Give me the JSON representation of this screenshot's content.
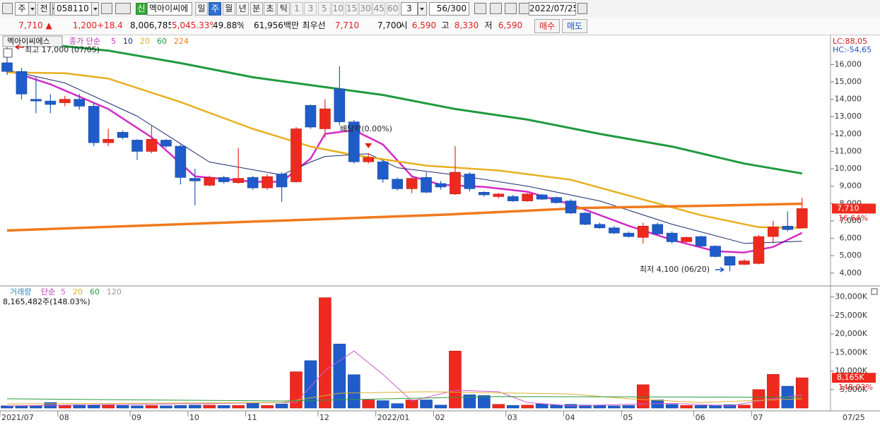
{
  "toolbar": {
    "period_type": "주",
    "adjust": "전",
    "code": "058110",
    "new_badge": "신",
    "name": "멕아이씨에",
    "periods": [
      "일",
      "주",
      "월",
      "년",
      "분",
      "초",
      "틱"
    ],
    "selected_period": 1,
    "intervals": [
      "1",
      "3",
      "5",
      "10",
      "15",
      "30",
      "45",
      "60"
    ],
    "interval_input": "3",
    "count": "56/300",
    "date": "2022/07/25"
  },
  "quote": {
    "price": "7,710 ▲",
    "change": "1,200",
    "change_rate": "+18.43%",
    "volume": "8,006,785",
    "volume_rate": "5,045.33%",
    "turnover": "49.88%",
    "amount": "61,956백만",
    "best_label": "최우선",
    "ask": "7,710",
    "bid": "7,700",
    "open_label": "시",
    "open": "6,590",
    "high_label": "고",
    "high": "8,330",
    "low_label": "저",
    "low": "6,590",
    "buy": "매수",
    "sell": "매도"
  },
  "chart_data": [
    {
      "type": "candlestick",
      "title": "멕아이씨에스",
      "legend_prefix": "종가 단순",
      "open": [
        16100,
        15600,
        14000,
        13900,
        13800,
        14000,
        13600,
        11500,
        12100,
        11650,
        11000,
        11650,
        11300,
        9450,
        9050,
        9500,
        9200,
        9500,
        8900,
        9700,
        9250,
        13650,
        12300,
        14600,
        12700,
        10400,
        10400,
        9400,
        8850,
        9500,
        9150,
        8550,
        9700,
        8650,
        8400,
        8400,
        8150,
        8500,
        8350,
        8150,
        7450,
        6800,
        6600,
        6300,
        6050,
        6800,
        6300,
        5800,
        6100,
        5550,
        4950,
        4500,
        4550,
        6100,
        6700,
        6590
      ],
      "high": [
        17000,
        15800,
        15300,
        14300,
        14200,
        14300,
        13800,
        12300,
        12200,
        11700,
        12500,
        11700,
        11400,
        10000,
        9600,
        9600,
        11200,
        9600,
        9700,
        9800,
        12400,
        13700,
        14000,
        15900,
        12800,
        10900,
        10500,
        9500,
        9500,
        9800,
        9300,
        11300,
        9800,
        8700,
        8600,
        8500,
        8600,
        8550,
        8400,
        8250,
        7500,
        6900,
        6700,
        6400,
        6900,
        6900,
        6400,
        6100,
        6150,
        5600,
        5000,
        4800,
        6200,
        7000,
        7550,
        8330
      ],
      "low": [
        15400,
        14000,
        13200,
        13200,
        13600,
        13400,
        11300,
        11300,
        11700,
        10500,
        10900,
        11200,
        9100,
        7900,
        9000,
        9150,
        9150,
        8800,
        8800,
        8100,
        9200,
        12300,
        11800,
        12500,
        10300,
        10300,
        9200,
        8750,
        8600,
        8600,
        8800,
        8500,
        8700,
        8400,
        8300,
        8100,
        8100,
        8200,
        8000,
        7400,
        6750,
        6550,
        6250,
        6050,
        5700,
        6200,
        5700,
        5750,
        5500,
        4900,
        4100,
        4450,
        4500,
        5700,
        6400,
        6590
      ],
      "close": [
        15600,
        14300,
        13900,
        13700,
        14000,
        13600,
        11500,
        11700,
        11800,
        11000,
        11700,
        11300,
        9500,
        9300,
        9500,
        9250,
        9450,
        8900,
        9550,
        8950,
        12300,
        12400,
        13450,
        12700,
        10400,
        10650,
        9400,
        8850,
        9450,
        8650,
        8950,
        9800,
        8850,
        8500,
        8550,
        8150,
        8550,
        8250,
        8050,
        7450,
        6800,
        6600,
        6300,
        6100,
        6700,
        6250,
        5800,
        6050,
        5550,
        4950,
        4450,
        4700,
        6100,
        6650,
        6500,
        7710
      ],
      "up_color": "#ee2a1f",
      "down_color": "#1f5cc9",
      "ylim": [
        3300,
        17600
      ],
      "yticks": [
        {
          "value": 4000,
          "label": "4,000"
        },
        {
          "value": 5000,
          "label": "5,000"
        },
        {
          "value": 6000,
          "label": "6,000"
        },
        {
          "value": 7000,
          "label": "7,000"
        },
        {
          "value": 8000,
          "label": "8,000"
        },
        {
          "value": 9000,
          "label": "9,000"
        },
        {
          "value": 10000,
          "label": "10,000"
        },
        {
          "value": 11000,
          "label": "11,000"
        },
        {
          "value": 12000,
          "label": "12,000"
        },
        {
          "value": 13000,
          "label": "13,000"
        },
        {
          "value": 14000,
          "label": "14,000"
        },
        {
          "value": 15000,
          "label": "15,000"
        },
        {
          "value": 16000,
          "label": "16,000"
        }
      ],
      "series": [
        {
          "name": "5",
          "color": "#d22cc6",
          "width": 2.5,
          "x": [
            0,
            3,
            7,
            10,
            13,
            17,
            19,
            21,
            22,
            24,
            26,
            28,
            30,
            33,
            36,
            39,
            43,
            46,
            49,
            51,
            53,
            55
          ],
          "values": [
            15680,
            14860,
            13440,
            11810,
            9570,
            9250,
            9250,
            10590,
            12010,
            12220,
            11400,
            9570,
            9080,
            8960,
            8680,
            7950,
            6720,
            5910,
            5260,
            5180,
            5500,
            6320
          ]
        },
        {
          "name": "10",
          "color": "#1d2a6e",
          "width": 1,
          "x": [
            0,
            4,
            9,
            14,
            19,
            21,
            22,
            25,
            27,
            31,
            36,
            41,
            46,
            51,
            55
          ],
          "values": [
            15680,
            14940,
            13030,
            10390,
            9650,
            10390,
            10710,
            10870,
            10060,
            9650,
            9000,
            8150,
            6810,
            5710,
            5830
          ]
        },
        {
          "name": "20",
          "color": "#e8b020",
          "width": 2.5,
          "x": [
            0,
            4,
            7,
            12,
            17,
            21,
            24,
            29,
            34,
            39,
            44,
            48,
            52,
            55
          ],
          "values": [
            15550,
            15500,
            15190,
            13840,
            12300,
            11280,
            10790,
            10180,
            9900,
            9370,
            8230,
            7330,
            6640,
            6600
          ]
        },
        {
          "name": "60",
          "color": "#1f9a3e",
          "width": 3,
          "x": [
            0,
            7,
            12,
            17,
            22,
            26,
            31,
            36,
            41,
            46,
            51,
            55
          ],
          "values": [
            17380,
            16800,
            16080,
            15270,
            14700,
            14250,
            13440,
            12830,
            12010,
            11280,
            10300,
            9730
          ]
        },
        {
          "name": "224",
          "color": "#f07a1c",
          "width": 3.5,
          "x": [
            0,
            10,
            20,
            30,
            40,
            50,
            55
          ],
          "values": [
            6450,
            6750,
            7050,
            7350,
            7750,
            7900,
            7990
          ]
        }
      ],
      "high_note": "최고 17,000 (07/05)",
      "dividend_note": "배당락(0.00%)",
      "low_note": "최저 4,100 (06/20)",
      "lc": "LC:88,05",
      "hc": "HC:-54,65",
      "last_value_label": "7,710",
      "last_change_label": "16.64%"
    },
    {
      "type": "bar",
      "title": "거래량",
      "legend_prefix": "단순",
      "unshown_period": "120",
      "volume_label": "8,165,482주(148.03%)",
      "categories": [
        "2021/07",
        null,
        null,
        null,
        "08",
        null,
        null,
        null,
        null,
        "09",
        null,
        null,
        null,
        "10",
        null,
        null,
        null,
        "11",
        null,
        null,
        null,
        null,
        "12",
        null,
        null,
        null,
        "2022/01",
        null,
        null,
        null,
        "02",
        null,
        null,
        null,
        null,
        "03",
        null,
        null,
        null,
        "04",
        null,
        null,
        null,
        "05",
        null,
        null,
        null,
        null,
        "06",
        null,
        null,
        null,
        "07",
        null,
        null,
        null
      ],
      "values": [
        600,
        500,
        700,
        1500,
        700,
        900,
        800,
        800,
        700,
        600,
        700,
        600,
        700,
        800,
        800,
        700,
        700,
        1300,
        700,
        1100,
        9800,
        12800,
        29800,
        17300,
        9000,
        2200,
        2000,
        1200,
        2200,
        2200,
        800,
        15400,
        3600,
        3400,
        1000,
        700,
        800,
        1100,
        800,
        1000,
        800,
        800,
        600,
        700,
        6300,
        2200,
        1000,
        700,
        700,
        800,
        900,
        800,
        5000,
        9100,
        5900,
        8165
      ],
      "ylim": [
        0,
        32400
      ],
      "yticks": [
        {
          "value": 5000,
          "label": "5,000K"
        },
        {
          "value": 10000,
          "label": "10,000K"
        },
        {
          "value": 15000,
          "label": "15,000K"
        },
        {
          "value": 20000,
          "label": "20,000K"
        },
        {
          "value": 25000,
          "label": "25,000K"
        },
        {
          "value": 30000,
          "label": "30,000K"
        }
      ],
      "series": [
        {
          "name": "5",
          "color": "#d25ad2",
          "x": [
            0,
            20,
            22,
            24,
            26,
            28,
            31,
            34,
            36,
            39,
            43,
            46,
            50,
            52,
            55
          ],
          "values": [
            600,
            1500,
            10100,
            15400,
            9100,
            1900,
            4800,
            4400,
            1500,
            600,
            1000,
            1300,
            600,
            1900,
            3600
          ]
        },
        {
          "name": "20",
          "color": "#d9b22e",
          "x": [
            0,
            19,
            23,
            29,
            39,
            43,
            48,
            55
          ],
          "values": [
            1100,
            1500,
            4000,
            4400,
            3800,
            2500,
            1500,
            2500
          ]
        },
        {
          "name": "60",
          "color": "#2a9a40",
          "x": [
            0,
            19,
            34,
            55
          ],
          "values": [
            2500,
            1900,
            3100,
            2900
          ]
        }
      ],
      "last_value_label": "8,165K",
      "last_change_label": "148.03%",
      "x_end_label": "07/25"
    }
  ]
}
